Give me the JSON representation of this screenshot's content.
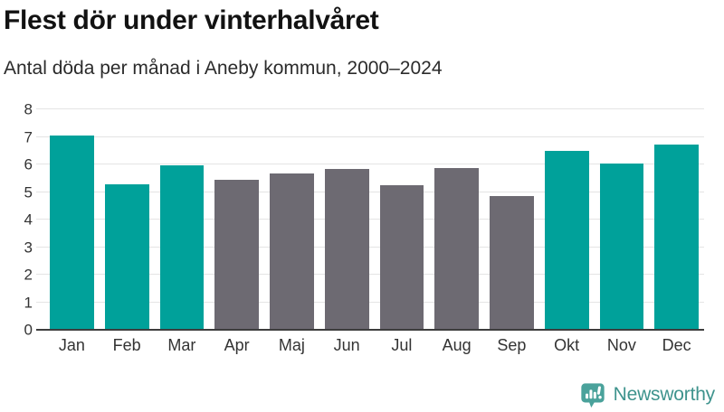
{
  "header": {
    "title": "Flest dör under vinterhalvåret",
    "subtitle": "Antal döda per månad i Aneby kommun, 2000–2024"
  },
  "chart_data": {
    "type": "bar",
    "title": "Flest dör under vinterhalvåret",
    "subtitle": "Antal döda per månad i Aneby kommun, 2000–2024",
    "categories": [
      "Jan",
      "Feb",
      "Mar",
      "Apr",
      "Maj",
      "Jun",
      "Jul",
      "Aug",
      "Sep",
      "Okt",
      "Nov",
      "Dec"
    ],
    "values": [
      7.04,
      5.28,
      5.96,
      5.44,
      5.68,
      5.84,
      5.24,
      5.88,
      4.84,
      6.48,
      6.04,
      6.72
    ],
    "highlighted": [
      true,
      true,
      true,
      false,
      false,
      false,
      false,
      false,
      false,
      true,
      true,
      true
    ],
    "xlabel": "",
    "ylabel": "",
    "ylim": [
      0,
      8
    ],
    "yticks": [
      0,
      1,
      2,
      3,
      4,
      5,
      6,
      7,
      8
    ],
    "grid": true,
    "legend": false
  },
  "colors": {
    "background": "#ffffff",
    "title": "#121212",
    "subtitle": "#2b2b2b",
    "axis_text": "#333333",
    "axis_line": "#3d3d3d",
    "gridline": "#e4e4e4",
    "bar_highlight": "#00a19a",
    "bar_muted": "#6d6a72",
    "logo_icon": "#4aa29b",
    "logo_text": "#3e938d"
  },
  "footer": {
    "brand": "Newsworthy"
  }
}
